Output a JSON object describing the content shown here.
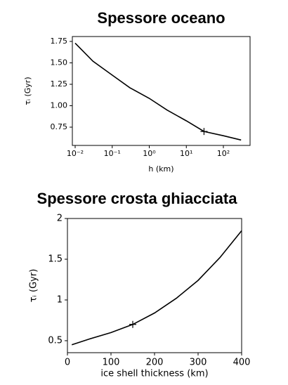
{
  "chart_data": [
    {
      "type": "line",
      "title": "Spessore oceano",
      "xlabel": "h (km)",
      "ylabel": "τᵢ (Gyr)",
      "xscale": "log",
      "xlim": [
        0.0084,
        525
      ],
      "ylim": [
        0.537,
        1.807
      ],
      "xticks": [
        {
          "value": 0.01,
          "label": "10⁻²"
        },
        {
          "value": 0.1,
          "label": "10⁻¹"
        },
        {
          "value": 1,
          "label": "10⁰"
        },
        {
          "value": 10,
          "label": "10¹"
        },
        {
          "value": 100,
          "label": "10²"
        }
      ],
      "yticks": [
        {
          "value": 0.75,
          "label": "0.75"
        },
        {
          "value": 1,
          "label": "1.00"
        },
        {
          "value": 1.25,
          "label": "1.25"
        },
        {
          "value": 1.5,
          "label": "1.50"
        },
        {
          "value": 1.75,
          "label": "1.75"
        }
      ],
      "x": [
        0.01,
        0.03,
        0.1,
        0.3,
        1,
        3,
        10,
        30,
        100,
        300
      ],
      "series": [
        {
          "color": "#000000",
          "values": [
            1.73,
            1.52,
            1.357,
            1.21,
            1.086,
            0.95,
            0.824,
            0.7,
            0.65,
            0.6
          ]
        }
      ],
      "points": {
        "x": [
          30
        ],
        "y": [
          0.7
        ]
      }
    },
    {
      "type": "line",
      "title": "Spessore crosta ghiacciata",
      "xlabel": "ice shell thickness (km)",
      "ylabel": "τᵢ (Gyr)",
      "xscale": "linear",
      "xlim": [
        0,
        400
      ],
      "ylim": [
        0.353,
        2.0
      ],
      "xticks": [
        0,
        100,
        200,
        300,
        400
      ],
      "yticks": [
        0.5,
        1.0,
        1.5,
        2.0
      ],
      "x": [
        10,
        50,
        100,
        150,
        200,
        250,
        300,
        350,
        400
      ],
      "series": [
        {
          "color": "#000000",
          "values": [
            0.45,
            0.52,
            0.6,
            0.7,
            0.84,
            1.02,
            1.24,
            1.52,
            1.85
          ]
        }
      ],
      "points": {
        "x": [
          150
        ],
        "y": [
          0.7
        ]
      }
    }
  ]
}
